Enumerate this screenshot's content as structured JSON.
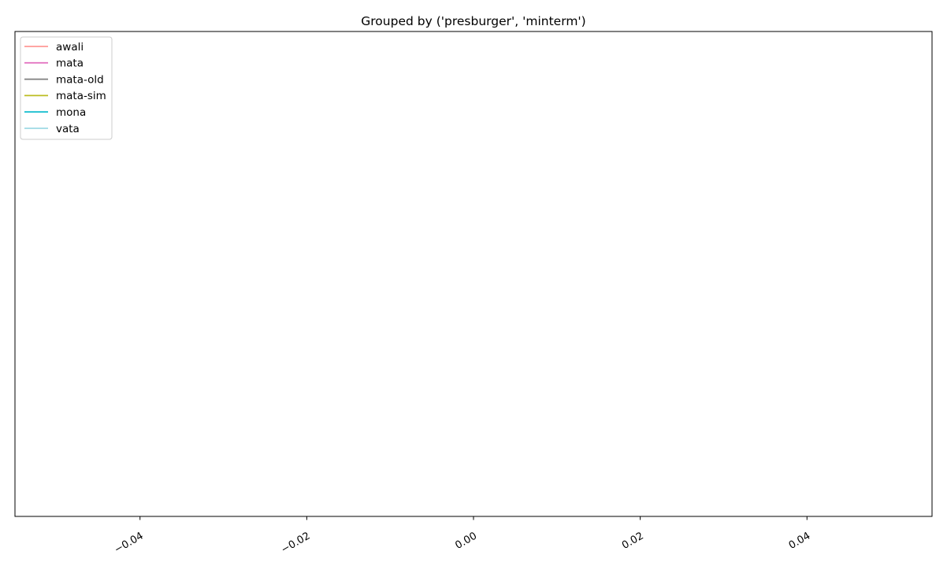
{
  "chart_data": {
    "type": "line",
    "title": "Grouped by ('presburger', 'minterm')",
    "xlabel": "",
    "ylabel": "",
    "xlim": [
      -0.055,
      0.055
    ],
    "x_ticks": [
      -0.04,
      -0.02,
      0.0,
      0.02,
      0.04
    ],
    "x_tick_labels": [
      "−0.04",
      "−0.02",
      "0.00",
      "0.02",
      "0.04"
    ],
    "x_tick_rotation_deg": 30,
    "y_ticks": [],
    "grid": false,
    "legend_position": "top-left",
    "series": [
      {
        "name": "awali",
        "color": "#ff9896",
        "x": [],
        "y": []
      },
      {
        "name": "mata",
        "color": "#e377c2",
        "x": [],
        "y": []
      },
      {
        "name": "mata-old",
        "color": "#7f7f7f",
        "x": [],
        "y": []
      },
      {
        "name": "mata-sim",
        "color": "#bcbd22",
        "x": [],
        "y": []
      },
      {
        "name": "mona",
        "color": "#17becf",
        "x": [],
        "y": []
      },
      {
        "name": "vata",
        "color": "#9edae5",
        "x": [],
        "y": []
      }
    ]
  }
}
